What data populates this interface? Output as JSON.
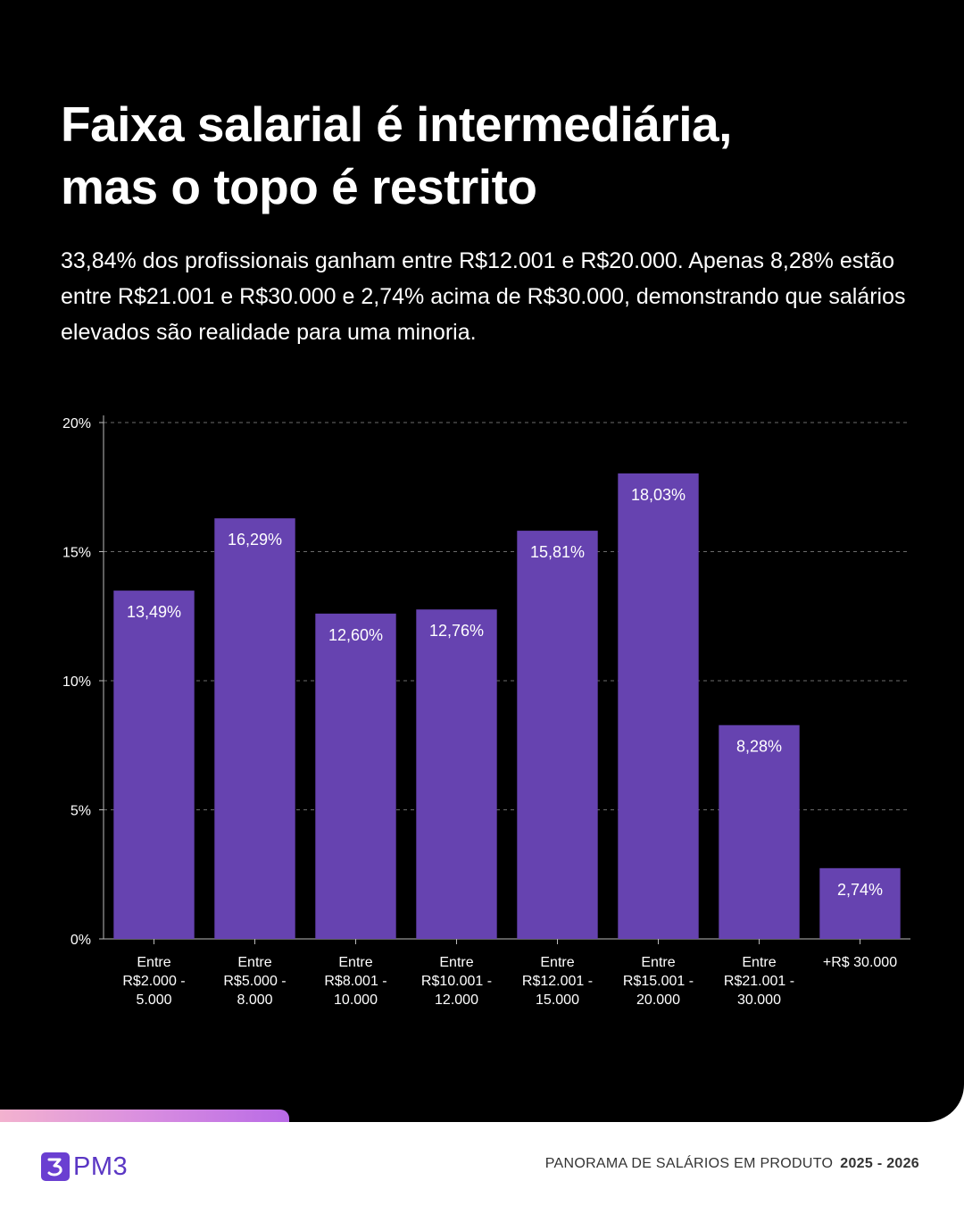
{
  "title_lines": [
    "Faixa salarial é intermediária,",
    "mas o topo é restrito"
  ],
  "subtitle": "33,84% dos profissionais ganham entre R$12.001 e R$20.000. Apenas 8,28% estão entre R$21.001 e R$30.000 e 2,74% acima de R$30.000, demonstrando que salários elevados são realidade para uma minoria.",
  "colors": {
    "background": "#000000",
    "bar": "#6643b0",
    "accent": "#6a3fd1"
  },
  "chart_data": {
    "type": "bar",
    "title": "",
    "xlabel": "",
    "ylabel": "",
    "ylim": [
      0,
      20
    ],
    "yticks": [
      "0%",
      "5%",
      "10%",
      "15%",
      "20%"
    ],
    "ytick_values": [
      0,
      5,
      10,
      15,
      20
    ],
    "grid": true,
    "categories": [
      [
        "Entre",
        "R$2.000 -",
        "5.000"
      ],
      [
        "Entre",
        "R$5.000 -",
        "8.000"
      ],
      [
        "Entre",
        "R$8.001 -",
        "10.000"
      ],
      [
        "Entre",
        "R$10.001 -",
        "12.000"
      ],
      [
        "Entre",
        "R$12.001 -",
        "15.000"
      ],
      [
        "Entre",
        "R$15.001 -",
        "20.000"
      ],
      [
        "Entre",
        "R$21.001 -",
        "30.000"
      ],
      [
        "+R$ 30.000"
      ]
    ],
    "values": [
      13.49,
      16.29,
      12.6,
      12.76,
      15.81,
      18.03,
      8.28,
      2.74
    ],
    "data_labels": [
      "13,49%",
      "16,29%",
      "12,60%",
      "12,76%",
      "15,81%",
      "18,03%",
      "8,28%",
      "2,74%"
    ]
  },
  "footer": {
    "logo_mark": "3",
    "brand": "PM3",
    "report_name": "PANORAMA DE SALÁRIOS EM PRODUTO",
    "years": "2025 - 2026"
  }
}
